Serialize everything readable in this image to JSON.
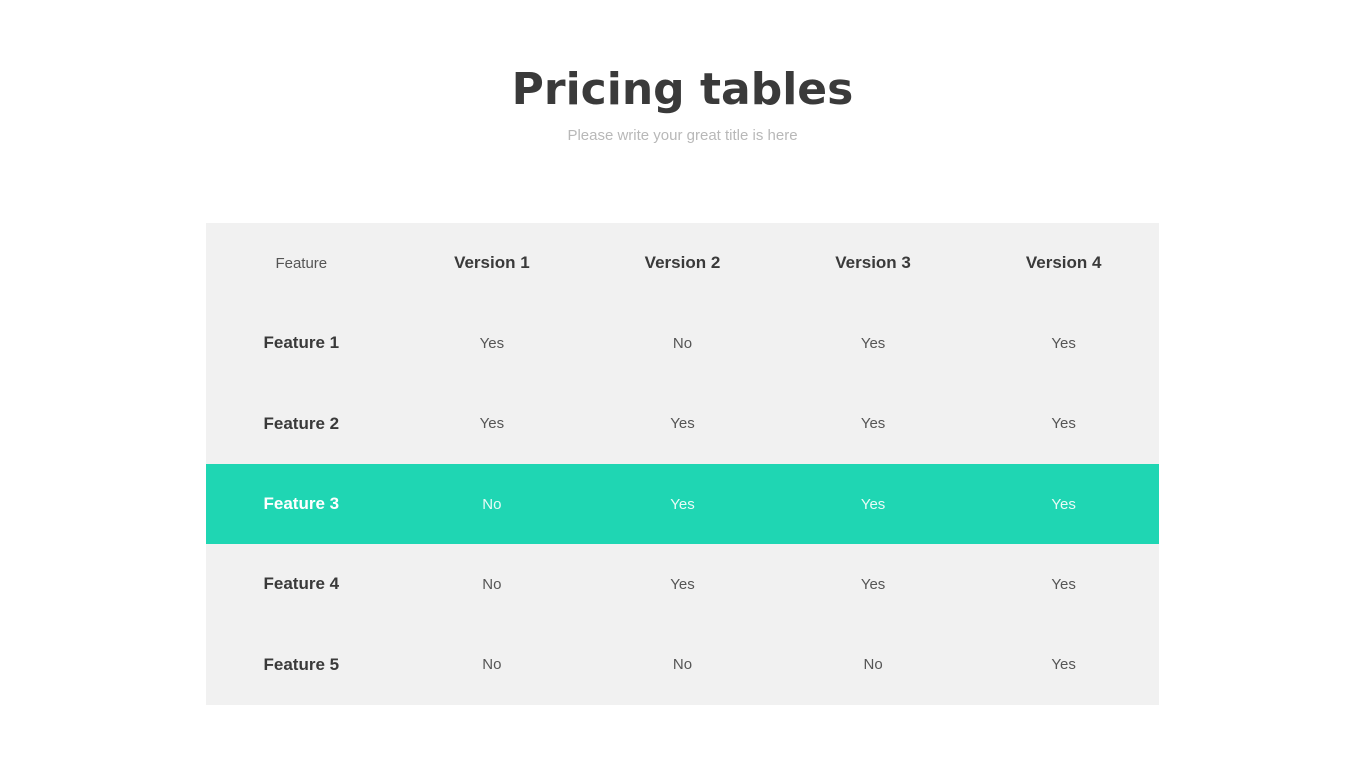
{
  "title": "Pricing tables",
  "subtitle": "Please write your great title is here",
  "accent_color": "#1fd6b3",
  "table": {
    "headers": [
      "Feature",
      "Version 1",
      "Version 2",
      "Version 3",
      "Version 4"
    ],
    "highlighted_row": "Feature 3",
    "rows": [
      {
        "feature": "Feature 1",
        "values": [
          "Yes",
          "No",
          "Yes",
          "Yes"
        ]
      },
      {
        "feature": "Feature 2",
        "values": [
          "Yes",
          "Yes",
          "Yes",
          "Yes"
        ]
      },
      {
        "feature": "Feature 3",
        "values": [
          "No",
          "Yes",
          "Yes",
          "Yes"
        ]
      },
      {
        "feature": "Feature 4",
        "values": [
          "No",
          "Yes",
          "Yes",
          "Yes"
        ]
      },
      {
        "feature": "Feature 5",
        "values": [
          "No",
          "No",
          "No",
          "Yes"
        ]
      }
    ]
  }
}
